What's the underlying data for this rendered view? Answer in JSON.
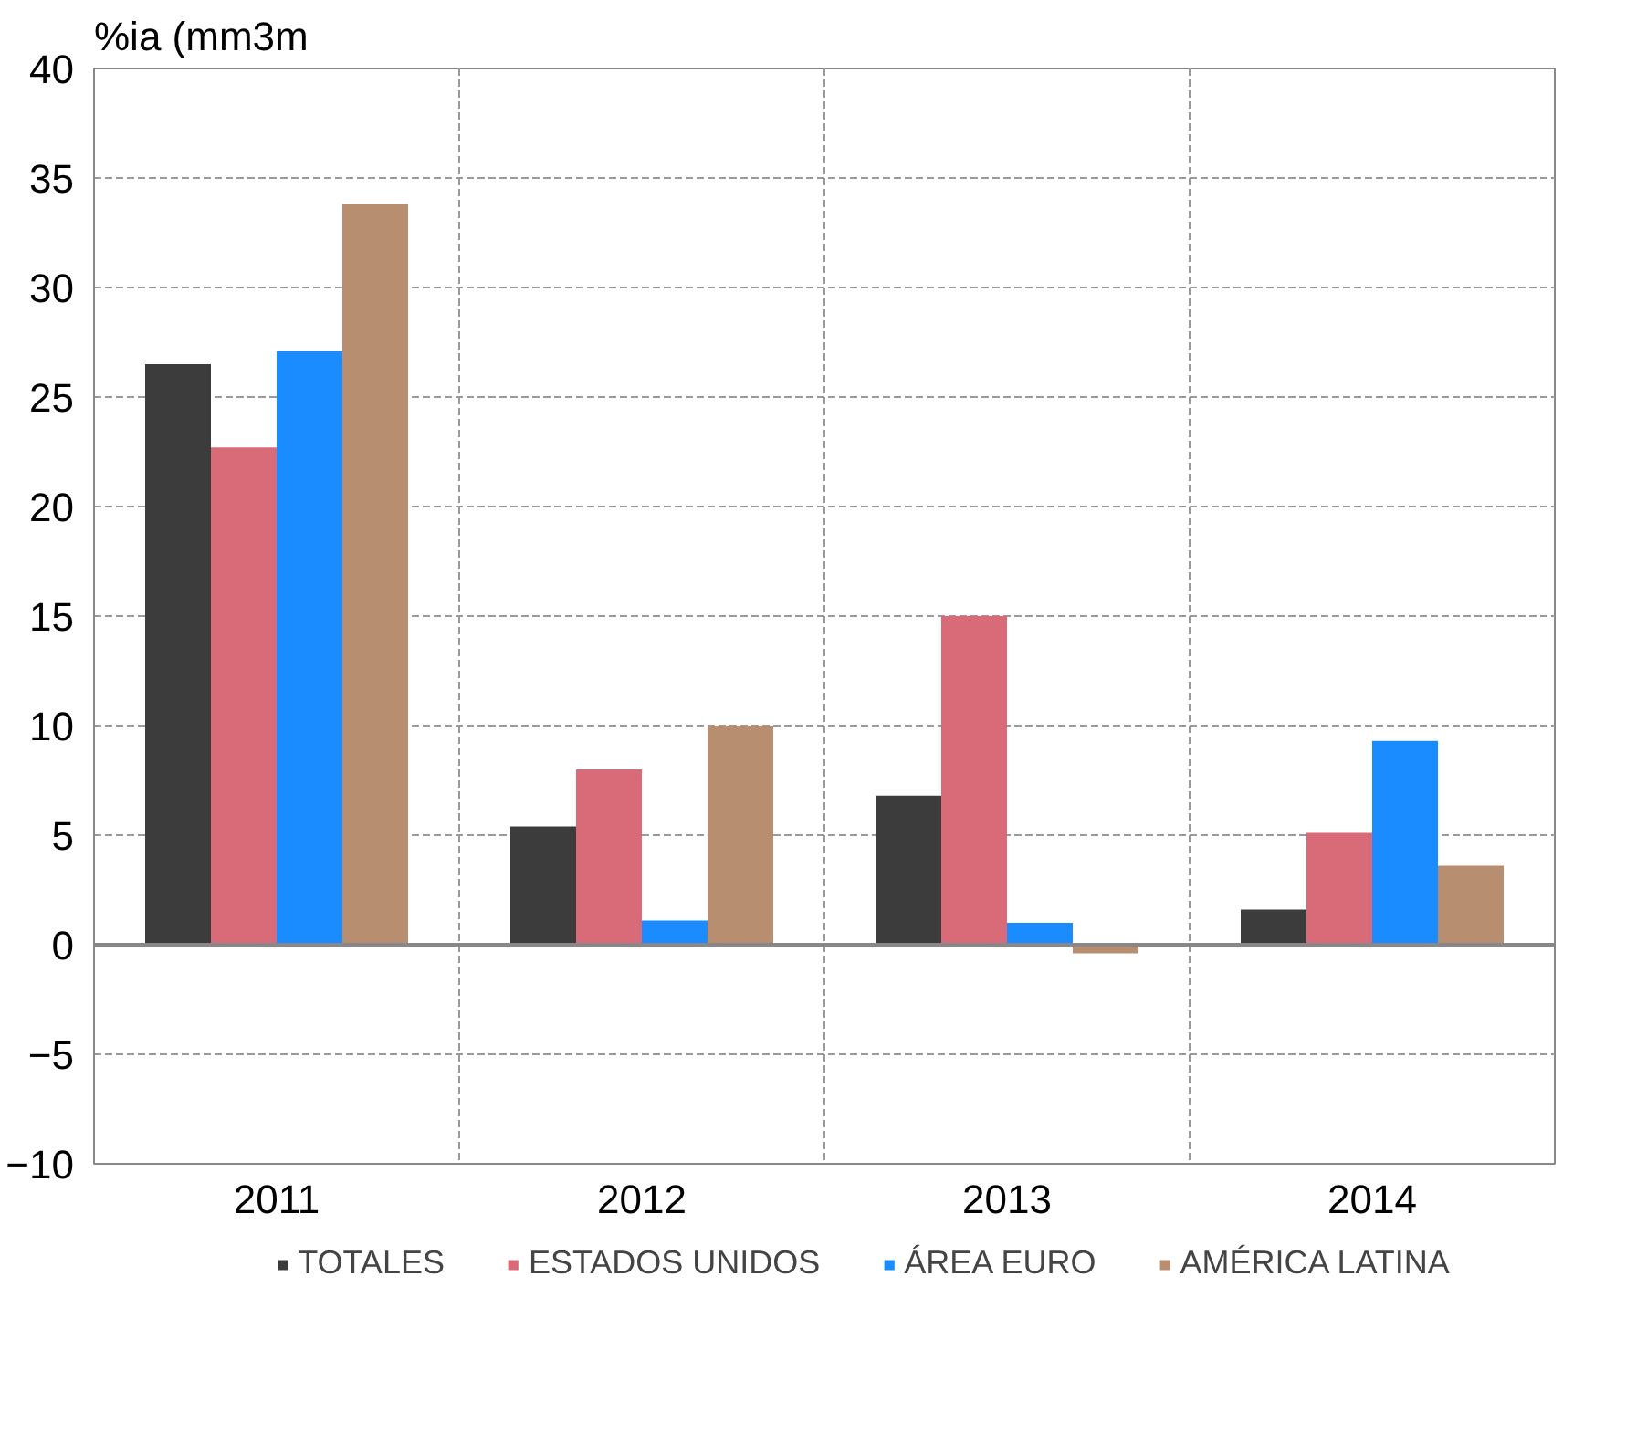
{
  "chart_data": {
    "type": "bar",
    "ylabel": "%ia (mm3m",
    "categories": [
      "2011",
      "2012",
      "2013",
      "2014"
    ],
    "series": [
      {
        "name": "TOTALES",
        "color": "#3c3c3c",
        "values": [
          26.5,
          5.4,
          6.8,
          1.6
        ]
      },
      {
        "name": "ESTADOS UNIDOS",
        "color": "#d96b78",
        "values": [
          22.7,
          8.0,
          15.0,
          5.1
        ]
      },
      {
        "name": "ÁREA EURO",
        "color": "#1a8cff",
        "values": [
          27.1,
          1.1,
          1.0,
          9.3
        ]
      },
      {
        "name": "AMÉRICA LATINA",
        "color": "#b78e70",
        "values": [
          33.8,
          10.0,
          -0.4,
          3.6
        ]
      }
    ],
    "ylim": [
      -10,
      40
    ],
    "yticks": [
      -10,
      -5,
      0,
      5,
      10,
      15,
      20,
      25,
      30,
      35,
      40
    ],
    "grid": true,
    "legend": "bottom"
  }
}
